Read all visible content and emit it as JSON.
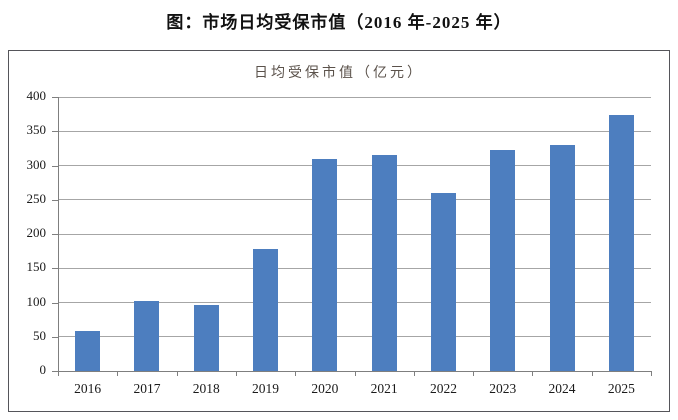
{
  "page_title": "图：市场日均受保市值（2016 年-2025 年）",
  "chart": {
    "colors": {
      "bar": "#4d7ebf",
      "gridline": "#a6a6a6",
      "axis": "#7f7f7f",
      "frame_border": "#55555a",
      "title_text": "#5b524b",
      "tick_text": "#1a1a1a"
    }
  },
  "chart_data": {
    "type": "bar",
    "title": "日均受保市值（亿元）",
    "categories": [
      "2016",
      "2017",
      "2018",
      "2019",
      "2020",
      "2021",
      "2022",
      "2023",
      "2024",
      "2025"
    ],
    "values": [
      58,
      102,
      97,
      178,
      309,
      315,
      260,
      322,
      330,
      373
    ],
    "xlabel": "",
    "ylabel": "",
    "ylim": [
      0,
      400
    ],
    "yticks": [
      0,
      50,
      100,
      150,
      200,
      250,
      300,
      350,
      400
    ],
    "grid": true,
    "legend_position": "none"
  }
}
